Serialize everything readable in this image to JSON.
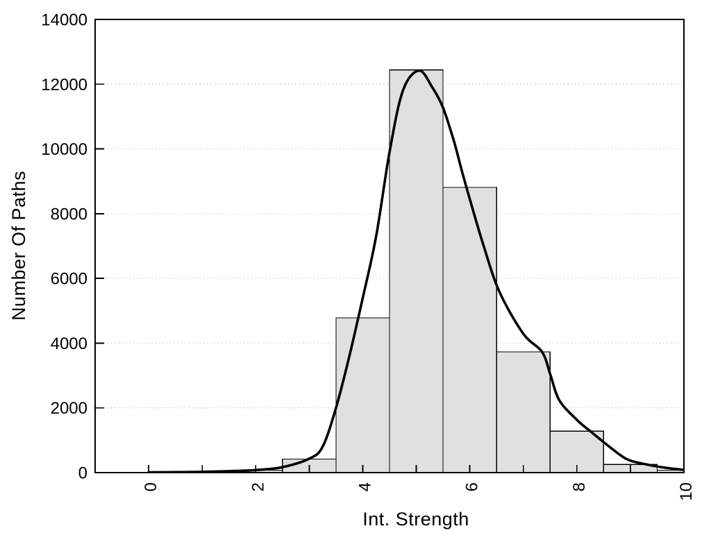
{
  "chart_data": {
    "type": "bar",
    "subtype": "histogram-with-density-curve",
    "title": "",
    "xlabel": "Int. Strength",
    "ylabel": "Number Of Paths",
    "xlim": [
      -1,
      10
    ],
    "ylim": [
      0,
      14000
    ],
    "grid": "horizontal-dotted",
    "legend": null,
    "x_ticks": [
      0,
      1,
      2,
      3,
      4,
      5,
      6,
      7,
      8,
      9,
      10
    ],
    "x_labeled_ticks": [
      0,
      2,
      4,
      6,
      8,
      10
    ],
    "x_tick_labels": [
      "0",
      "2",
      "4",
      "6",
      "8",
      "10"
    ],
    "x_tick_label_rotation_deg": -90,
    "y_ticks": [
      0,
      2000,
      4000,
      6000,
      8000,
      10000,
      12000,
      14000
    ],
    "y_tick_labels": [
      "0",
      "2000",
      "4000",
      "6000",
      "8000",
      "10000",
      "12000",
      "14000"
    ],
    "y_gridlines": [
      2000,
      4000,
      6000,
      8000,
      10000,
      12000
    ],
    "histogram": {
      "bin_width": 1,
      "bin_centers": [
        2,
        3,
        4,
        5,
        6,
        7,
        8,
        9,
        10
      ],
      "counts": [
        75,
        420,
        4780,
        12440,
        8810,
        3730,
        1280,
        250,
        75
      ]
    },
    "density_curve": {
      "x": [
        0,
        0.5,
        1,
        1.5,
        2,
        2.5,
        3,
        3.25,
        3.5,
        3.75,
        4,
        4.25,
        4.5,
        4.75,
        5.05,
        5.3,
        5.5,
        5.7,
        5.85,
        6,
        6.25,
        6.55,
        7,
        7.35,
        7.5,
        7.67,
        8,
        8.25,
        8.57,
        8.83,
        9,
        9.25,
        9.5,
        9.75,
        10
      ],
      "y": [
        10,
        15,
        25,
        45,
        80,
        170,
        430,
        800,
        2000,
        3600,
        5400,
        7300,
        9900,
        11800,
        12420,
        11900,
        11270,
        10260,
        9330,
        8450,
        7050,
        5600,
        4290,
        3730,
        3050,
        2240,
        1630,
        1280,
        850,
        520,
        370,
        270,
        190,
        130,
        85
      ]
    },
    "colors": {
      "bar_fill": "#e0e0e0",
      "bar_border": "#000000",
      "curve": "#000000",
      "grid": "#c8c8c8",
      "axis": "#000000",
      "text": "#000000",
      "background": "#ffffff"
    }
  }
}
